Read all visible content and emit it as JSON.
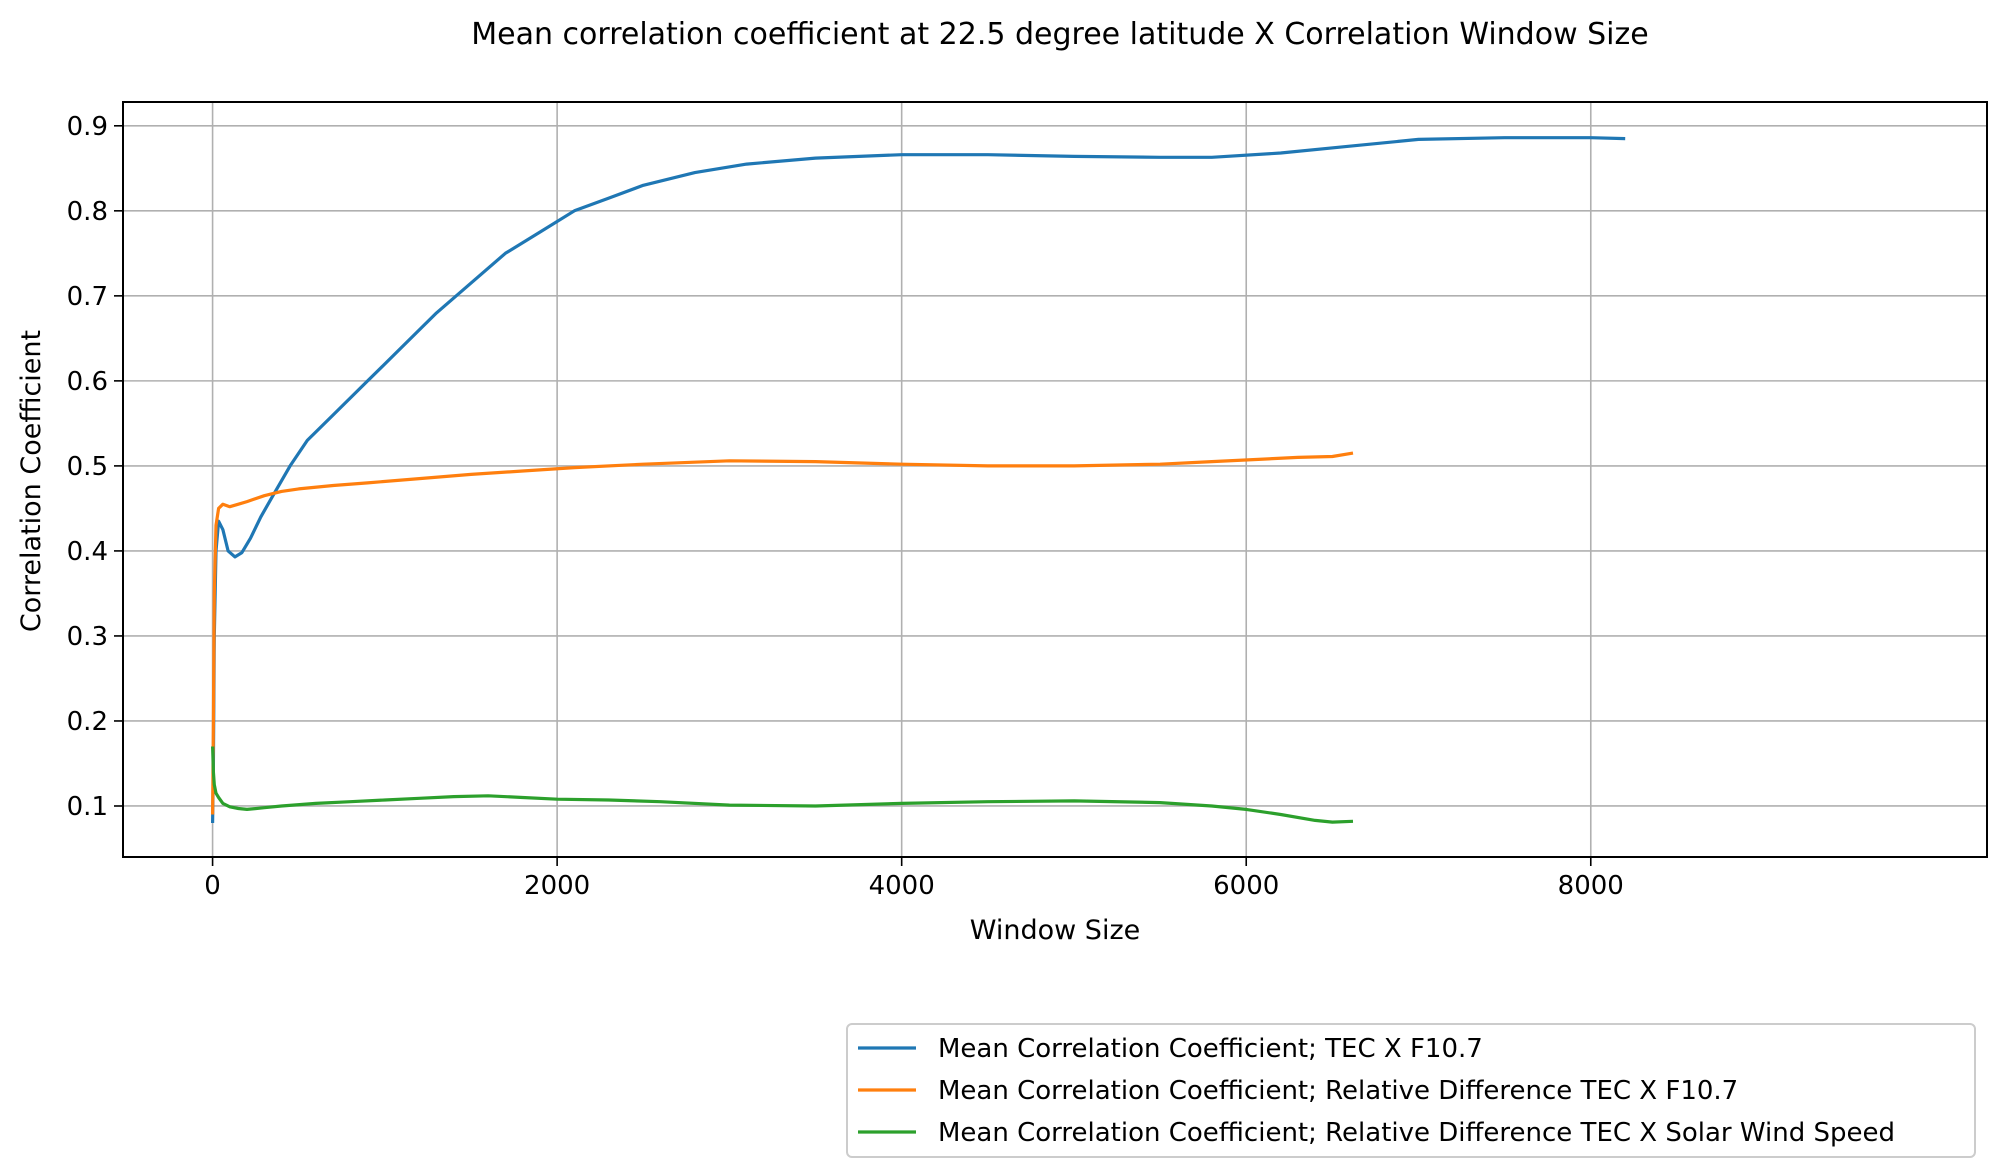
{
  "chart_data": {
    "type": "line",
    "title": "Mean correlation coefficient at 22.5 degree latitude X Correlation Window Size",
    "xlabel": "Window Size",
    "ylabel": "Correlation Coefficient",
    "xlim": [
      -520,
      10300
    ],
    "ylim": [
      0.04,
      0.928
    ],
    "xticks": [
      0,
      2000,
      4000,
      6000,
      8000
    ],
    "xtick_labels": [
      "0",
      "2000",
      "4000",
      "6000",
      "8000"
    ],
    "yticks": [
      0.1,
      0.2,
      0.3,
      0.4,
      0.5,
      0.6,
      0.7,
      0.8,
      0.9
    ],
    "ytick_labels": [
      "0.1",
      "0.2",
      "0.3",
      "0.4",
      "0.5",
      "0.6",
      "0.7",
      "0.8",
      "0.9"
    ],
    "grid": true,
    "legend_position": "below-right",
    "series": [
      {
        "name": "Mean Correlation Coefficient; TEC X F10.7",
        "color": "#1f77b4",
        "x": [
          0,
          5,
          10,
          20,
          35,
          60,
          90,
          130,
          170,
          220,
          280,
          350,
          450,
          550,
          700,
          900,
          1100,
          1300,
          1500,
          1700,
          1900,
          2100,
          2300,
          2500,
          2800,
          3100,
          3500,
          4000,
          4500,
          5000,
          5500,
          5800,
          6200,
          6600,
          7000,
          7500,
          8000,
          8200
        ],
        "y": [
          0.08,
          0.15,
          0.3,
          0.4,
          0.435,
          0.425,
          0.4,
          0.393,
          0.398,
          0.415,
          0.44,
          0.465,
          0.5,
          0.53,
          0.56,
          0.6,
          0.64,
          0.68,
          0.715,
          0.75,
          0.775,
          0.8,
          0.815,
          0.83,
          0.845,
          0.855,
          0.862,
          0.866,
          0.866,
          0.864,
          0.863,
          0.863,
          0.868,
          0.876,
          0.884,
          0.886,
          0.886,
          0.885
        ]
      },
      {
        "name": "Mean Correlation Coefficient; Relative Difference TEC X F10.7",
        "color": "#ff7f0e",
        "x": [
          0,
          5,
          10,
          20,
          35,
          60,
          100,
          150,
          200,
          300,
          400,
          500,
          700,
          900,
          1200,
          1500,
          1800,
          2100,
          2500,
          3000,
          3500,
          4000,
          4500,
          5000,
          5500,
          5800,
          6100,
          6300,
          6500,
          6620
        ],
        "y": [
          0.09,
          0.2,
          0.35,
          0.43,
          0.45,
          0.455,
          0.452,
          0.455,
          0.458,
          0.465,
          0.47,
          0.473,
          0.477,
          0.48,
          0.485,
          0.49,
          0.494,
          0.498,
          0.502,
          0.506,
          0.505,
          0.502,
          0.5,
          0.5,
          0.502,
          0.505,
          0.508,
          0.51,
          0.511,
          0.515
        ]
      },
      {
        "name": "Mean Correlation Coefficient; Relative Difference TEC X Solar Wind Speed",
        "color": "#2ca02c",
        "x": [
          0,
          5,
          10,
          20,
          35,
          60,
          100,
          150,
          200,
          300,
          400,
          600,
          800,
          1000,
          1200,
          1400,
          1600,
          1800,
          2000,
          2300,
          2600,
          3000,
          3500,
          4000,
          4500,
          5000,
          5500,
          5800,
          6000,
          6200,
          6400,
          6500,
          6620
        ],
        "y": [
          0.17,
          0.14,
          0.125,
          0.115,
          0.11,
          0.103,
          0.099,
          0.097,
          0.096,
          0.098,
          0.1,
          0.103,
          0.105,
          0.107,
          0.109,
          0.111,
          0.112,
          0.11,
          0.108,
          0.107,
          0.105,
          0.101,
          0.1,
          0.103,
          0.105,
          0.106,
          0.104,
          0.1,
          0.096,
          0.09,
          0.083,
          0.081,
          0.082
        ]
      }
    ]
  }
}
